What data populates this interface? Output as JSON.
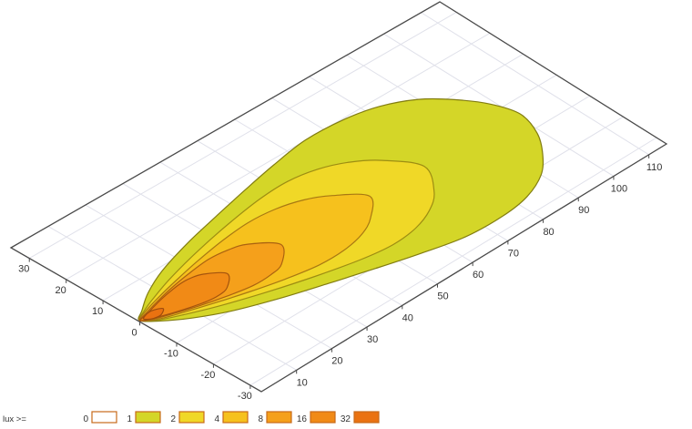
{
  "chart_data": {
    "type": "contour",
    "subtype": "isolux-ground-projection",
    "title": "",
    "distance_axis": {
      "unit_ticks": [
        10,
        20,
        30,
        40,
        50,
        60,
        70,
        80,
        90,
        100,
        110
      ],
      "range": [
        0,
        115
      ],
      "grid_spacing": 10
    },
    "width_axis": {
      "unit_ticks": [
        30,
        20,
        10,
        0,
        -10,
        -20,
        -30
      ],
      "range": [
        35,
        -33
      ],
      "grid_spacing": 10
    },
    "grid": {
      "show": true,
      "color": "#e0e1ea"
    },
    "axis_color": "#4a4a4a",
    "legend": {
      "title": "lux >=",
      "swatch_border": "#c76a1a",
      "entries": [
        {
          "label": "0",
          "color": "#ffffff"
        },
        {
          "label": "1",
          "color": "#d4d628"
        },
        {
          "label": "2",
          "color": "#f0d827"
        },
        {
          "label": "4",
          "color": "#f6c11d"
        },
        {
          "label": "8",
          "color": "#f5a01b"
        },
        {
          "label": "16",
          "color": "#f18a16"
        },
        {
          "label": "32",
          "color": "#ea7211"
        }
      ]
    },
    "beam_origin": {
      "distance": 0,
      "width": 0
    },
    "center_drift_per_unit": -0.045,
    "levels": [
      {
        "lux": 1,
        "fill": "#d4d628",
        "stroke": "#827d10",
        "max_distance": 101,
        "profile": [
          [
            0.3,
            0.4
          ],
          [
            3,
            2.5
          ],
          [
            8,
            6
          ],
          [
            15,
            9.5
          ],
          [
            25,
            13
          ],
          [
            35,
            15.8
          ],
          [
            45,
            18.5
          ],
          [
            55,
            21
          ],
          [
            65,
            23
          ],
          [
            75,
            23
          ],
          [
            83,
            21.5
          ],
          [
            90,
            18
          ],
          [
            95,
            13
          ],
          [
            99,
            7
          ],
          [
            101,
            0.2
          ]
        ]
      },
      {
        "lux": 2,
        "fill": "#f0d827",
        "stroke": "#9d8d12",
        "max_distance": 75,
        "profile": [
          [
            0.3,
            0.35
          ],
          [
            3,
            2
          ],
          [
            8,
            4.2
          ],
          [
            15,
            6.8
          ],
          [
            25,
            9.8
          ],
          [
            35,
            12.3
          ],
          [
            45,
            14.3
          ],
          [
            53,
            15
          ],
          [
            60,
            14
          ],
          [
            66,
            11.5
          ],
          [
            71,
            7.5
          ],
          [
            75.5,
            0.2
          ]
        ]
      },
      {
        "lux": 4,
        "fill": "#f6c11d",
        "stroke": "#a87812",
        "max_distance": 61,
        "profile": [
          [
            0.3,
            0.3
          ],
          [
            3,
            1.7
          ],
          [
            8,
            3.4
          ],
          [
            15,
            5.4
          ],
          [
            22,
            7.2
          ],
          [
            30,
            8.9
          ],
          [
            38,
            10
          ],
          [
            45,
            9.7
          ],
          [
            51,
            8.2
          ],
          [
            56,
            5.4
          ],
          [
            61,
            0.2
          ]
        ]
      },
      {
        "lux": 8,
        "fill": "#f5a01b",
        "stroke": "#aa6210",
        "max_distance": 37,
        "profile": [
          [
            0.3,
            0.25
          ],
          [
            3,
            1.3
          ],
          [
            7,
            2.6
          ],
          [
            12,
            4
          ],
          [
            18,
            5.3
          ],
          [
            24,
            6.2
          ],
          [
            29,
            5.9
          ],
          [
            33,
            4.7
          ],
          [
            37.5,
            0.2
          ]
        ]
      },
      {
        "lux": 16,
        "fill": "#f18a16",
        "stroke": "#a5540e",
        "max_distance": 23,
        "profile": [
          [
            0.3,
            0.2
          ],
          [
            3,
            1
          ],
          [
            6,
            2
          ],
          [
            10,
            3.1
          ],
          [
            14,
            3.9
          ],
          [
            17,
            4
          ],
          [
            20,
            3.2
          ],
          [
            23.3,
            0.2
          ]
        ]
      },
      {
        "lux": 32,
        "fill": "#ea7211",
        "stroke": "#9e4c0c",
        "max_distance": 6,
        "profile": [
          [
            1.2,
            0.15
          ],
          [
            2.2,
            0.8
          ],
          [
            3.5,
            1.15
          ],
          [
            4.8,
            1
          ],
          [
            6.3,
            0.15
          ]
        ]
      }
    ]
  }
}
